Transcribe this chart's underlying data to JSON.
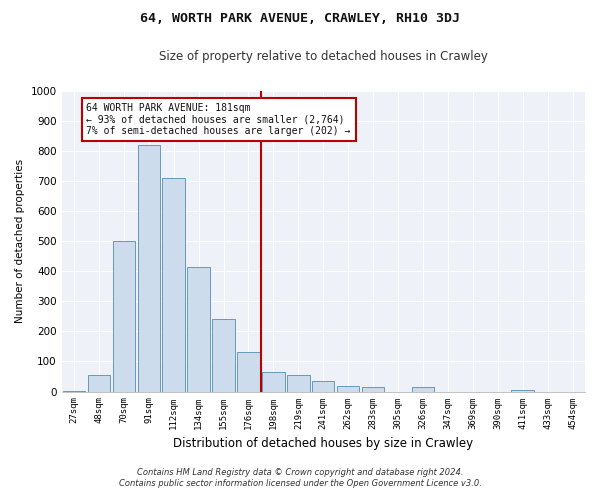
{
  "title": "64, WORTH PARK AVENUE, CRAWLEY, RH10 3DJ",
  "subtitle": "Size of property relative to detached houses in Crawley",
  "xlabel": "Distribution of detached houses by size in Crawley",
  "ylabel": "Number of detached properties",
  "bar_labels": [
    "27sqm",
    "48sqm",
    "70sqm",
    "91sqm",
    "112sqm",
    "134sqm",
    "155sqm",
    "176sqm",
    "198sqm",
    "219sqm",
    "241sqm",
    "262sqm",
    "283sqm",
    "305sqm",
    "326sqm",
    "347sqm",
    "369sqm",
    "390sqm",
    "411sqm",
    "433sqm",
    "454sqm"
  ],
  "bar_values": [
    3,
    55,
    500,
    820,
    710,
    415,
    240,
    130,
    65,
    55,
    35,
    20,
    15,
    0,
    15,
    0,
    0,
    0,
    5,
    0,
    0
  ],
  "bar_color": "#ccdcec",
  "bar_edge_color": "#6699bb",
  "vline_x_index": 7,
  "vline_color": "#bb0000",
  "annotation_title": "64 WORTH PARK AVENUE: 181sqm",
  "annotation_line2": "← 93% of detached houses are smaller (2,764)",
  "annotation_line3": "7% of semi-detached houses are larger (202) →",
  "annotation_box_color": "#ffffff",
  "annotation_border_color": "#bb0000",
  "ylim": [
    0,
    1000
  ],
  "yticks": [
    0,
    100,
    200,
    300,
    400,
    500,
    600,
    700,
    800,
    900,
    1000
  ],
  "footnote1": "Contains HM Land Registry data © Crown copyright and database right 2024.",
  "footnote2": "Contains public sector information licensed under the Open Government Licence v3.0.",
  "bg_color": "#ffffff",
  "plot_bg_color": "#eef2f8"
}
